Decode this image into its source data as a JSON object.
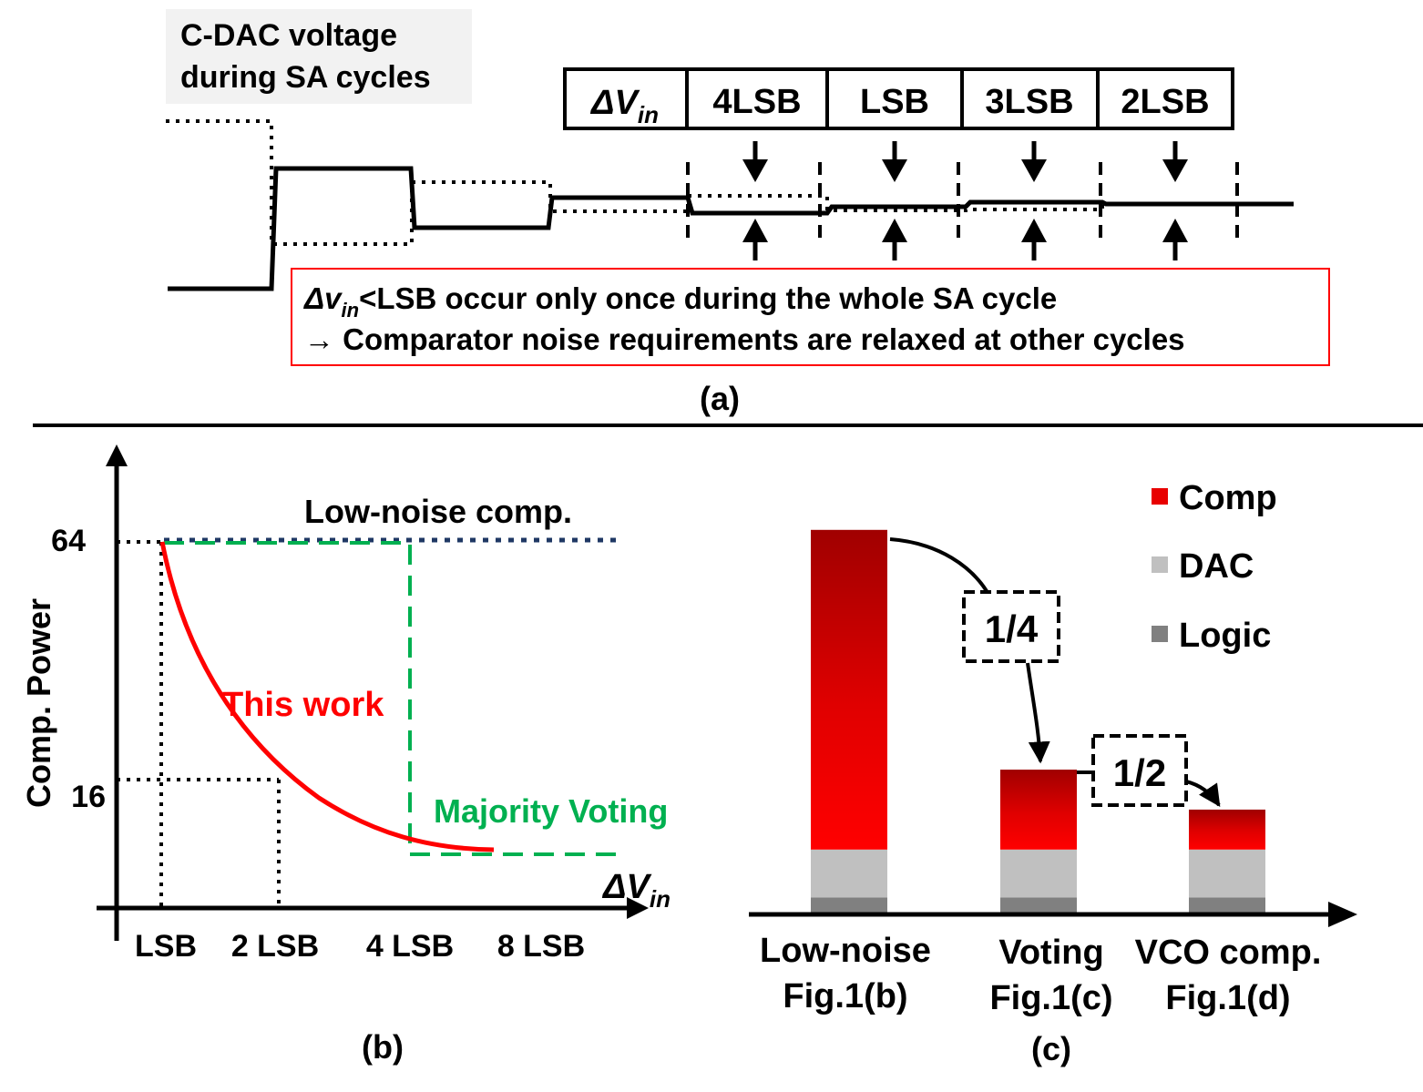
{
  "panel_a": {
    "title_line1": "C-DAC voltage",
    "title_line2": "during SA cycles",
    "table": {
      "header_sym": "ΔV",
      "header_sub": "in",
      "cells": [
        "4LSB",
        "LSB",
        "3LSB",
        "2LSB"
      ]
    },
    "note": {
      "line1_sym": "Δv",
      "line1_sub": "in",
      "line1_rest": "<LSB occur only once during the whole SA cycle",
      "line2": "→ Comparator noise requirements are relaxed at other cycles"
    },
    "caption": "(a)"
  },
  "panel_b": {
    "ylabel": "Comp. Power",
    "y_tick_64": "64",
    "y_tick_16": "16",
    "x_ticks": [
      "LSB",
      "2 LSB",
      "4 LSB",
      "8 LSB"
    ],
    "xlabel_sym": "ΔV",
    "xlabel_sub": "in",
    "label_low_noise": "Low-noise comp.",
    "label_this_work": "This work",
    "label_majority": "Majority Voting",
    "colors": {
      "low_noise": "#1f3864",
      "this_work": "#ff0000",
      "majority": "#00b050"
    },
    "caption": "(b)"
  },
  "panel_c": {
    "legend": [
      "Comp",
      "DAC",
      "Logic"
    ],
    "legend_colors": [
      "#e80000",
      "#c0c0c0",
      "#808080"
    ],
    "bars": [
      {
        "line1": "Low-noise",
        "line2": "Fig.1(b)",
        "logic": 1,
        "dac": 3,
        "comp": 20
      },
      {
        "line1": "Voting",
        "line2": "Fig.1(c)",
        "logic": 1,
        "dac": 3,
        "comp": 5
      },
      {
        "line1": "VCO comp.",
        "line2": "Fig.1(d)",
        "logic": 1,
        "dac": 3,
        "comp": 2.5
      }
    ],
    "ratio_1": "1/4",
    "ratio_2": "1/2",
    "caption": "(c)"
  }
}
